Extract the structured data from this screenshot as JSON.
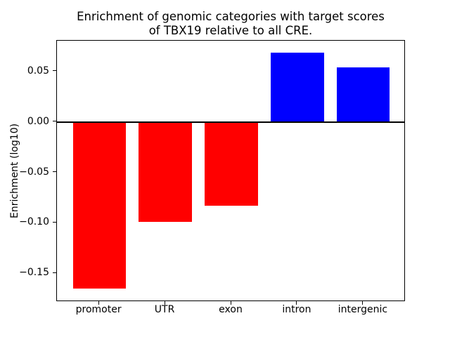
{
  "figure": {
    "title": "Enrichment of genomic categories with target scores\nof TBX19 relative to all CRE."
  },
  "chart_data": {
    "type": "bar",
    "title": "Enrichment of genomic categories with target scores of TBX19 relative to all CRE.",
    "categories": [
      "promoter",
      "UTR",
      "exon",
      "intron",
      "intergenic"
    ],
    "values": [
      -0.165,
      -0.099,
      -0.083,
      0.069,
      0.054
    ],
    "bar_colors": [
      "#ff0000",
      "#ff0000",
      "#ff0000",
      "#0000ff",
      "#0000ff"
    ],
    "color_rule": {
      "negative": "#ff0000",
      "positive": "#0000ff"
    },
    "xlabel": "",
    "ylabel": "Enrichment (log10)",
    "yticks": {
      "values": [
        0.05,
        0.0,
        -0.05,
        -0.1,
        -0.15
      ],
      "labels": [
        "0.05",
        "0.00",
        "−0.05",
        "−0.10",
        "−0.15"
      ]
    },
    "ylim": [
      -0.1785,
      0.0806
    ],
    "grid": false,
    "legend": null,
    "zero_line": true,
    "bar_width_fraction": 0.8,
    "axis_color": "#000000",
    "background": "#ffffff"
  }
}
